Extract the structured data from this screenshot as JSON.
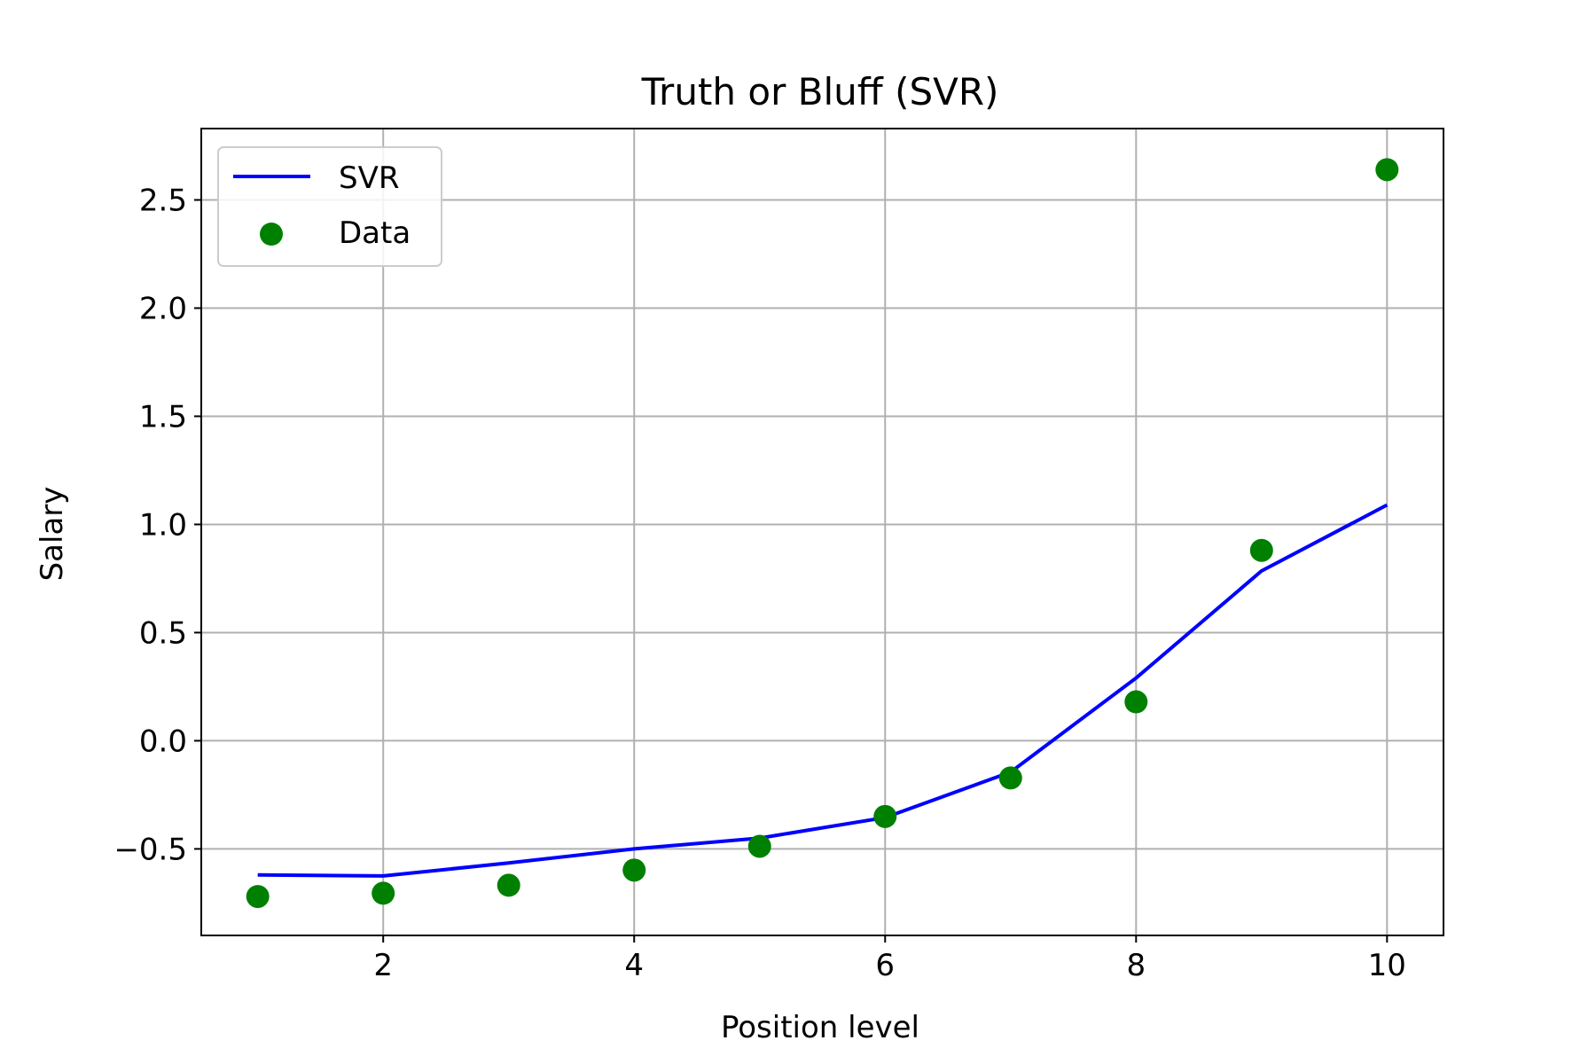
{
  "chart_data": {
    "type": "line",
    "title": "Truth or Bluff (SVR)",
    "xlabel": "Position level",
    "ylabel": "Salary",
    "xlim": [
      0.55,
      10.45
    ],
    "ylim": [
      -0.9,
      2.83
    ],
    "xticks": [
      2,
      4,
      6,
      8,
      10
    ],
    "xtick_labels": [
      "2",
      "4",
      "6",
      "8",
      "10"
    ],
    "yticks": [
      -0.5,
      0.0,
      0.5,
      1.0,
      1.5,
      2.0,
      2.5
    ],
    "ytick_labels": [
      "−0.5",
      "0.0",
      "0.5",
      "1.0",
      "1.5",
      "2.0",
      "2.5"
    ],
    "grid": true,
    "legend_position": "upper-left",
    "series": [
      {
        "name": "SVR",
        "kind": "line",
        "color": "#0000ff",
        "x": [
          1,
          2,
          3,
          4,
          5,
          6,
          7,
          8,
          9,
          10
        ],
        "y": [
          -0.62,
          -0.625,
          -0.565,
          -0.5,
          -0.45,
          -0.355,
          -0.145,
          0.29,
          0.785,
          1.09
        ]
      },
      {
        "name": "Data",
        "kind": "scatter",
        "color": "#008000",
        "x": [
          1,
          2,
          3,
          4,
          5,
          6,
          7,
          8,
          9,
          10
        ],
        "y": [
          -0.72,
          -0.705,
          -0.668,
          -0.598,
          -0.488,
          -0.35,
          -0.172,
          0.18,
          0.88,
          2.64
        ]
      }
    ]
  }
}
